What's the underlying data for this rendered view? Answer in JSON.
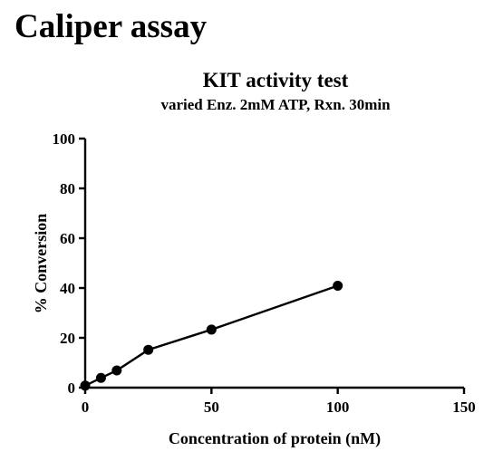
{
  "page": {
    "heading": "Caliper assay"
  },
  "chart_data": {
    "type": "line",
    "title": "KIT activity test",
    "subtitle": "varied Enz. 2mM ATP, Rxn. 30min",
    "xlabel": "Concentration of protein (nM)",
    "ylabel": "% Conversion",
    "xlim": [
      0,
      150
    ],
    "ylim": [
      0,
      100
    ],
    "xticks": [
      0,
      50,
      100,
      150
    ],
    "yticks": [
      0,
      20,
      40,
      60,
      80,
      100
    ],
    "grid": false,
    "series": [
      {
        "x": [
          0,
          6.25,
          12.5,
          25,
          50,
          100
        ],
        "y": [
          0.8,
          3.9,
          6.9,
          15.2,
          23.3,
          40.9
        ]
      }
    ]
  }
}
